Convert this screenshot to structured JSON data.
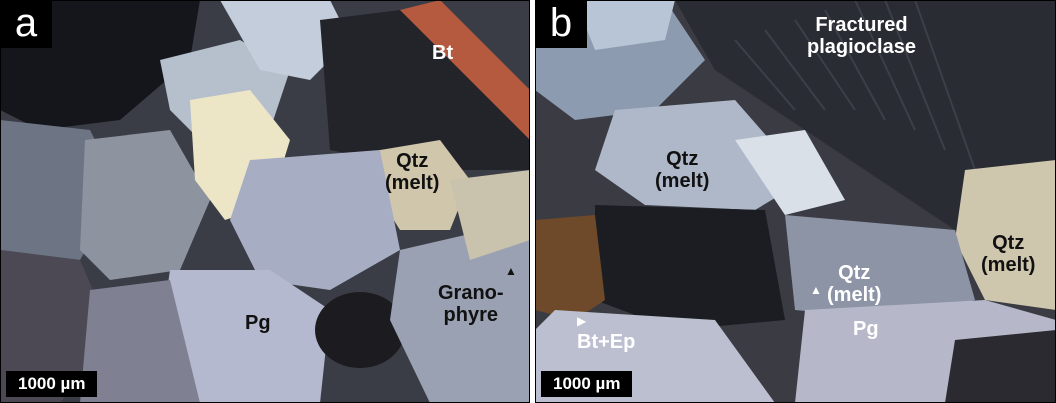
{
  "panels": [
    {
      "letter": "a",
      "scale_bar": "1000 µm",
      "labels": {
        "bt": "Bt",
        "qtz_1": "Qtz",
        "qtz_1_sub": "(melt)",
        "grano_1": "Grano-",
        "grano_2": "phyre",
        "pg": "Pg"
      }
    },
    {
      "letter": "b",
      "scale_bar": "1000 µm",
      "labels": {
        "fract_1": "Fractured",
        "fract_2": "plagioclase",
        "qtz_a": "Qtz",
        "qtz_a_sub": "(melt)",
        "qtz_b": "Qtz",
        "qtz_b_sub": "(melt)",
        "qtz_c": "Qtz",
        "qtz_c_sub": "(melt)",
        "bt_ep": "Bt+Ep",
        "pg": "Pg"
      }
    }
  ]
}
